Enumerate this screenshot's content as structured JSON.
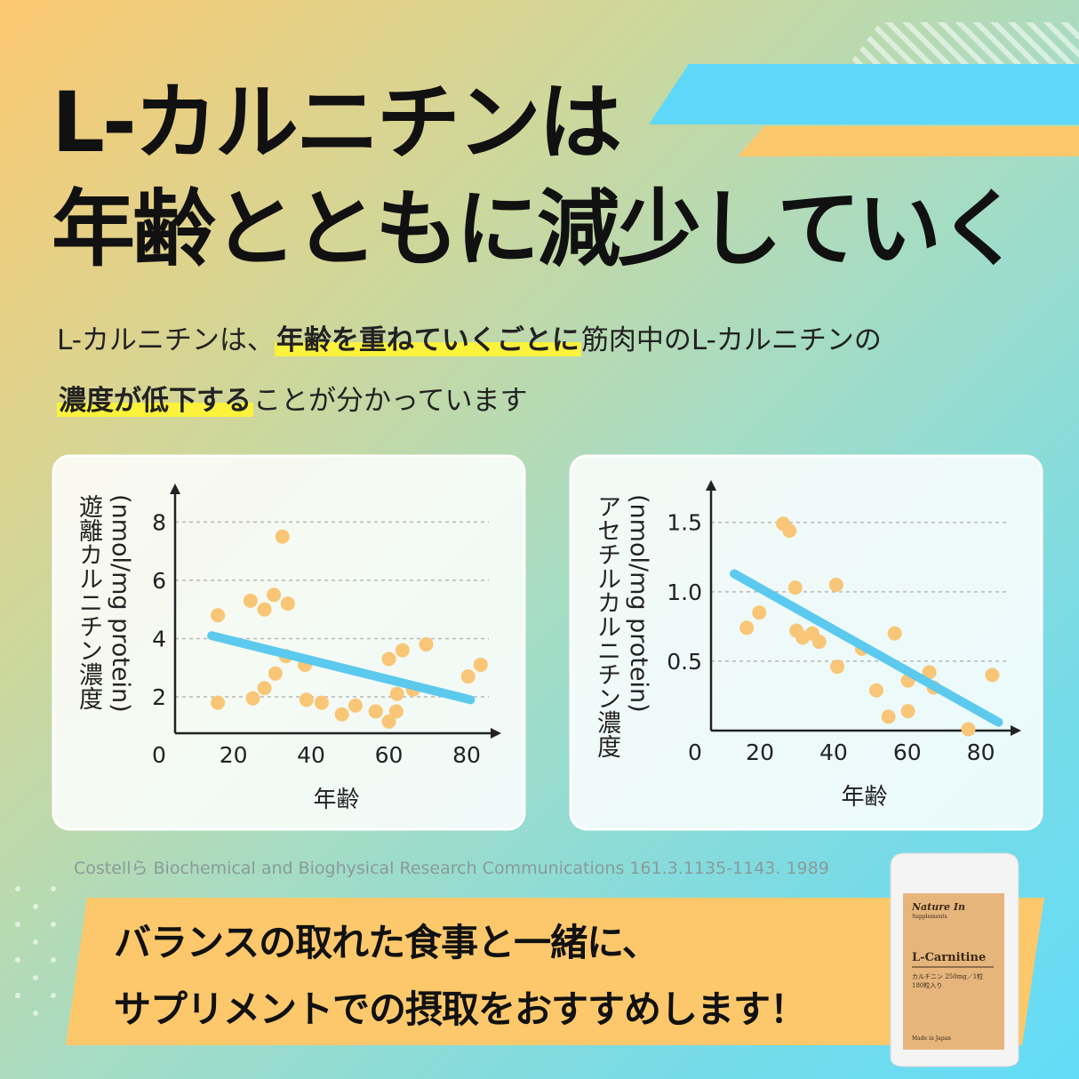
{
  "title_lines": [
    "L-カルニチンは",
    "年齢とともに減少していく"
  ],
  "intro": {
    "lines": [
      [
        {
          "text": "L-カルニチンは、",
          "highlight": false
        },
        {
          "text": "年齢を重ねていくごとに",
          "highlight": true
        },
        {
          "text": "筋肉中のL-カルニチンの",
          "highlight": false
        }
      ],
      [
        {
          "text": "濃度が低下する",
          "highlight": true
        },
        {
          "text": "ことが分かっています",
          "highlight": false
        }
      ]
    ]
  },
  "chart_data": [
    {
      "type": "scatter",
      "y_label_unit": "(nmol/mg protein)",
      "y_label": "遊離カルニチン濃度",
      "x_label": "年齢",
      "origin_label": "0",
      "x": [
        16,
        16,
        24.4,
        25,
        28,
        28,
        30.4,
        30.8,
        32.6,
        34,
        33.5,
        38.4,
        38.8,
        42.7,
        47.9,
        51.4,
        56.6,
        60,
        61.9,
        62.1,
        60,
        63.5,
        66.2,
        69.6,
        80.4,
        83.6
      ],
      "values": [
        4.8,
        1.8,
        5.3,
        1.95,
        5.0,
        2.3,
        5.5,
        2.8,
        7.5,
        5.2,
        3.4,
        3.1,
        1.9,
        1.8,
        1.4,
        1.7,
        1.5,
        1.15,
        1.5,
        2.1,
        3.3,
        3.6,
        2.25,
        3.8,
        2.7,
        3.1
      ],
      "color": "#f8c676",
      "trend_x": [
        14.4,
        81
      ],
      "trend_values": [
        4.1,
        1.9
      ],
      "trend_color": "#5cc9ef",
      "xlim": [
        5,
        88
      ],
      "ylim": [
        0.75,
        9.2
      ],
      "xticks": [
        20,
        40,
        60,
        80
      ],
      "yticks": [
        2,
        4,
        6,
        8
      ],
      "grid": true
    },
    {
      "type": "scatter",
      "y_label_unit": "(nmol/mg protein)",
      "y_label": "アセチルカルニチン濃度",
      "x_label": "年齢",
      "origin_label": "0",
      "x": [
        16.4,
        19.8,
        26.3,
        28,
        29.6,
        29.9,
        31.6,
        34.2,
        36.1,
        40.7,
        41,
        47.7,
        51.6,
        54.9,
        56.6,
        60.2,
        60.2,
        66,
        67.2,
        76.6,
        83.1
      ],
      "values": [
        0.74,
        0.85,
        1.49,
        1.44,
        1.03,
        0.72,
        0.67,
        0.7,
        0.64,
        1.05,
        0.46,
        0.59,
        0.29,
        0.1,
        0.7,
        0.36,
        0.14,
        0.42,
        0.31,
        0.01,
        0.4
      ],
      "color": "#f8c676",
      "trend_x": [
        13,
        84.8
      ],
      "trend_values": [
        1.13,
        0.06
      ],
      "trend_color": "#5cc9ef",
      "xlim": [
        6.7,
        90
      ],
      "ylim": [
        0,
        1.78
      ],
      "xticks": [
        20,
        40,
        60,
        80
      ],
      "yticks": [
        0.5,
        {
          "value": 1.0,
          "label": "1.0"
        },
        1.5
      ],
      "grid": true
    }
  ],
  "citation": "Costellら Biochemical and Bioghysical Research Communications 161.3.1135-1143. 1989",
  "banner_lines": [
    "バランスの取れた食事と一緒に、",
    "サプリメントでの摂取をおすすめします！"
  ],
  "product": {
    "brand": "Nature In",
    "brand_sub": "Supplements",
    "name": "L-Carnitine",
    "detail": "カルチニン 250mg／1粒",
    "count": "180粒入り",
    "origin": "Made in Japan"
  }
}
